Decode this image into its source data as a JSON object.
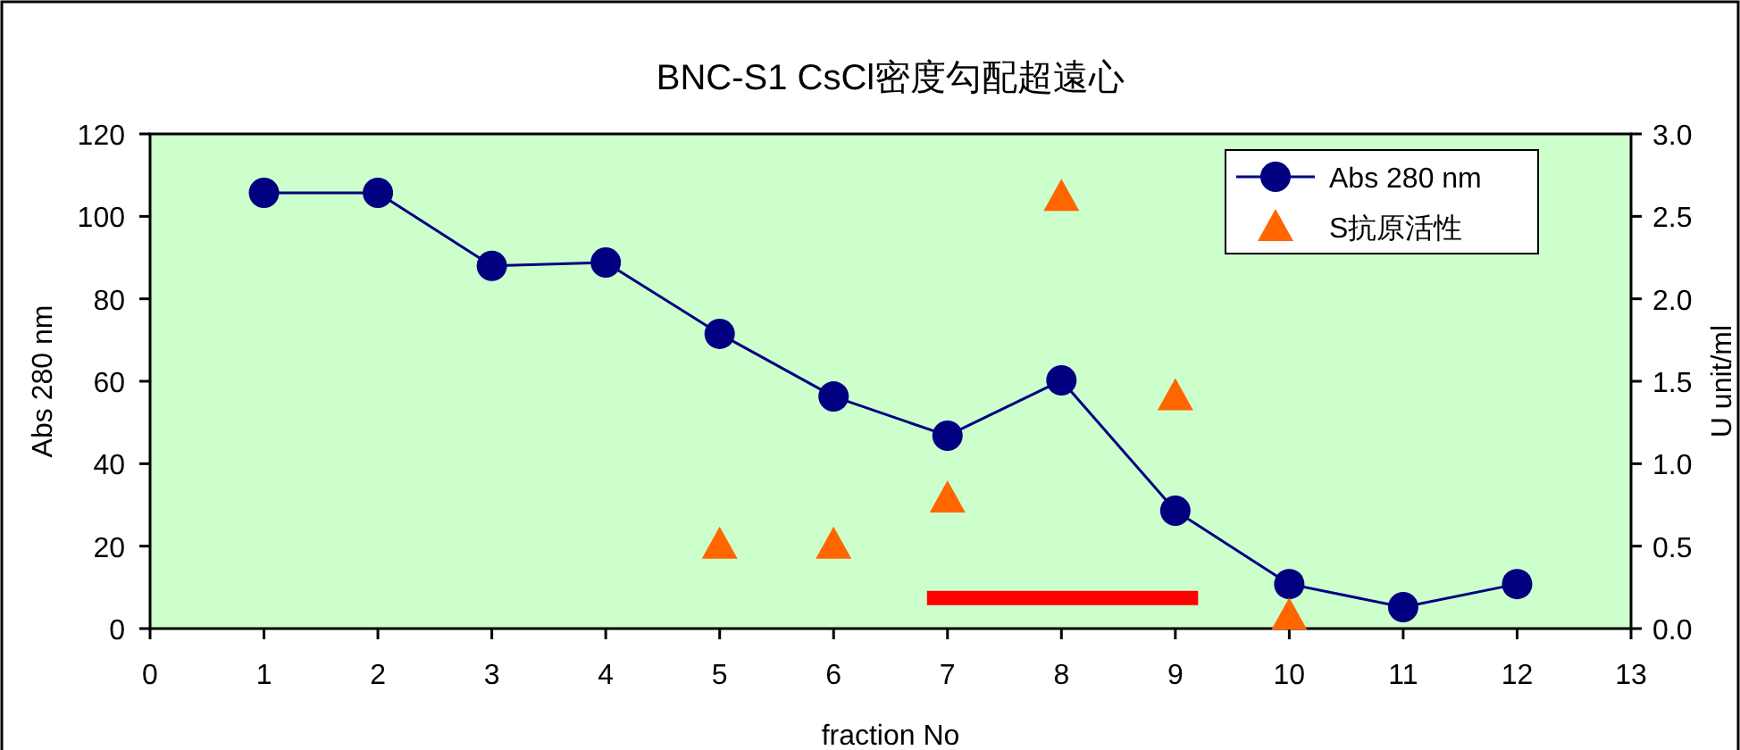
{
  "chart_data": {
    "type": "line",
    "title": "BNC-S1 CsCl密度勾配超遠心",
    "xlabel": "fraction No",
    "ylabel": "Abs 280 nm",
    "y2label": "U unit/ml",
    "x": [
      1,
      2,
      3,
      4,
      5,
      6,
      7,
      8,
      9,
      10,
      11,
      12
    ],
    "xlim": [
      0,
      13
    ],
    "xticks": [
      0,
      1,
      2,
      3,
      4,
      5,
      6,
      7,
      8,
      9,
      10,
      11,
      12,
      13
    ],
    "ylim": [
      0,
      120
    ],
    "yticks": [
      0,
      20,
      40,
      60,
      80,
      100,
      120
    ],
    "y2lim": [
      0,
      3
    ],
    "y2ticks": [
      {
        "value": 0,
        "label": "0.0"
      },
      {
        "value": 0.5,
        "label": "0.5"
      },
      {
        "value": 1,
        "label": "1.0"
      },
      {
        "value": 1.5,
        "label": "1.5"
      },
      {
        "value": 2,
        "label": "2.0"
      },
      {
        "value": 2.5,
        "label": "2.5"
      },
      {
        "value": 3,
        "label": "3.0"
      }
    ],
    "legend": "top right",
    "grid": false,
    "series": [
      {
        "name": "Abs 280 nm",
        "color": "#000080",
        "marker": "circle",
        "values": [
          105.7,
          105.7,
          88,
          88.8,
          71.5,
          56.3,
          46.8,
          60.2,
          28.6,
          10.8,
          5.2,
          10.8
        ]
      },
      {
        "name": "S抗原活性",
        "color": "#ff6600",
        "type": "scatter",
        "marker": "triangle",
        "axis": "y2",
        "x": [
          5,
          6,
          7,
          8,
          9,
          10
        ],
        "values": [
          0.51,
          0.51,
          0.79,
          2.62,
          1.41,
          0.08
        ]
      },
      {
        "color": "#ff0000",
        "marker": "none",
        "x": [
          6.82,
          9.2
        ],
        "values": [
          7.4,
          7.4
        ]
      }
    ]
  }
}
